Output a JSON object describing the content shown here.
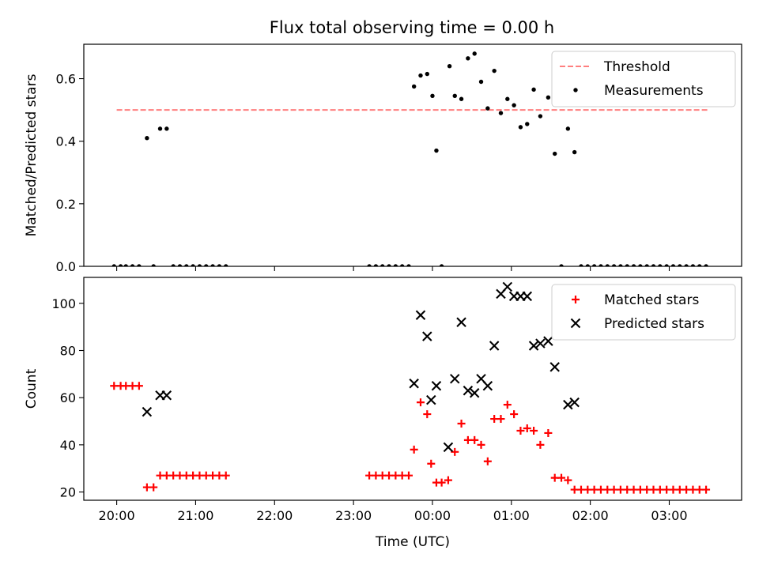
{
  "figure": {
    "title": "Flux total observing time = 0.00 h"
  },
  "chart_data": [
    {
      "type": "scatter",
      "title": "Flux total observing time = 0.00 h",
      "xlabel": "",
      "ylabel": "Matched/Predicted stars",
      "xlim": [
        "19:35",
        "03:55"
      ],
      "ylim": [
        0,
        0.71
      ],
      "xticks": [
        "20:00",
        "21:00",
        "22:00",
        "23:00",
        "00:00",
        "01:00",
        "02:00",
        "03:00"
      ],
      "yticks": [
        "0.0",
        "0.2",
        "0.4",
        "0.6"
      ],
      "show_x_tick_labels": false,
      "grid": false,
      "legend": {
        "placement": "upper right",
        "entries": [
          "Threshold",
          "Measurements"
        ]
      },
      "threshold": {
        "name": "Threshold",
        "y": 0.5,
        "x_range": [
          "20:00",
          "03:30"
        ],
        "color": "#ff7f7f",
        "style": "dashed"
      },
      "series": [
        {
          "name": "Measurements",
          "marker": "dot",
          "color": "#000000",
          "points": [
            [
              "19:58",
              0
            ],
            [
              "20:03",
              0
            ],
            [
              "20:07",
              0
            ],
            [
              "20:12",
              0
            ],
            [
              "20:17",
              0
            ],
            [
              "20:23",
              0.41
            ],
            [
              "20:28",
              0
            ],
            [
              "20:33",
              0.44
            ],
            [
              "20:38",
              0.44
            ],
            [
              "20:43",
              0
            ],
            [
              "20:48",
              0
            ],
            [
              "20:53",
              0
            ],
            [
              "20:58",
              0
            ],
            [
              "21:03",
              0
            ],
            [
              "21:08",
              0
            ],
            [
              "21:13",
              0
            ],
            [
              "21:18",
              0
            ],
            [
              "21:23",
              0
            ],
            [
              "23:12",
              0
            ],
            [
              "23:17",
              0
            ],
            [
              "23:22",
              0
            ],
            [
              "23:27",
              0
            ],
            [
              "23:32",
              0
            ],
            [
              "23:37",
              0
            ],
            [
              "23:42",
              0
            ],
            [
              "23:46",
              0.575
            ],
            [
              "23:51",
              0.61
            ],
            [
              "23:56",
              0.615
            ],
            [
              "00:00",
              0.545
            ],
            [
              "00:03",
              0.37
            ],
            [
              "00:07",
              0
            ],
            [
              "00:13",
              0.64
            ],
            [
              "00:17",
              0.545
            ],
            [
              "00:22",
              0.535
            ],
            [
              "00:27",
              0.665
            ],
            [
              "00:32",
              0.68
            ],
            [
              "00:37",
              0.59
            ],
            [
              "00:42",
              0.505
            ],
            [
              "00:47",
              0.625
            ],
            [
              "00:52",
              0.49
            ],
            [
              "00:57",
              0.535
            ],
            [
              "01:02",
              0.515
            ],
            [
              "01:07",
              0.445
            ],
            [
              "01:12",
              0.455
            ],
            [
              "01:17",
              0.565
            ],
            [
              "01:22",
              0.48
            ],
            [
              "01:28",
              0.54
            ],
            [
              "01:33",
              0.36
            ],
            [
              "01:38",
              0
            ],
            [
              "01:43",
              0.44
            ],
            [
              "01:48",
              0.365
            ],
            [
              "01:53",
              0
            ],
            [
              "01:58",
              0
            ],
            [
              "02:03",
              0
            ],
            [
              "02:08",
              0
            ],
            [
              "02:13",
              0
            ],
            [
              "02:18",
              0
            ],
            [
              "02:23",
              0
            ],
            [
              "02:28",
              0
            ],
            [
              "02:33",
              0
            ],
            [
              "02:38",
              0
            ],
            [
              "02:43",
              0
            ],
            [
              "02:48",
              0
            ],
            [
              "02:53",
              0
            ],
            [
              "02:58",
              0
            ],
            [
              "03:03",
              0
            ],
            [
              "03:08",
              0
            ],
            [
              "03:13",
              0
            ],
            [
              "03:18",
              0
            ],
            [
              "03:23",
              0
            ],
            [
              "03:28",
              0
            ]
          ]
        }
      ]
    },
    {
      "type": "scatter",
      "title": "",
      "xlabel": "Time (UTC)",
      "ylabel": "Count",
      "xlim": [
        "19:35",
        "03:55"
      ],
      "ylim": [
        16.5,
        111
      ],
      "xticks": [
        "20:00",
        "21:00",
        "22:00",
        "23:00",
        "00:00",
        "01:00",
        "02:00",
        "03:00"
      ],
      "yticks": [
        "20",
        "40",
        "60",
        "80",
        "100"
      ],
      "grid": false,
      "legend": {
        "placement": "upper right",
        "entries": [
          "Matched stars",
          "Predicted stars"
        ]
      },
      "series": [
        {
          "name": "Matched stars",
          "marker": "plus",
          "color": "#ff0000",
          "points": [
            [
              "19:58",
              65
            ],
            [
              "20:03",
              65
            ],
            [
              "20:07",
              65
            ],
            [
              "20:12",
              65
            ],
            [
              "20:17",
              65
            ],
            [
              "20:23",
              22
            ],
            [
              "20:28",
              22
            ],
            [
              "20:33",
              27
            ],
            [
              "20:38",
              27
            ],
            [
              "20:43",
              27
            ],
            [
              "20:48",
              27
            ],
            [
              "20:53",
              27
            ],
            [
              "20:58",
              27
            ],
            [
              "21:03",
              27
            ],
            [
              "21:08",
              27
            ],
            [
              "21:13",
              27
            ],
            [
              "21:18",
              27
            ],
            [
              "21:23",
              27
            ],
            [
              "23:12",
              27
            ],
            [
              "23:17",
              27
            ],
            [
              "23:22",
              27
            ],
            [
              "23:27",
              27
            ],
            [
              "23:32",
              27
            ],
            [
              "23:37",
              27
            ],
            [
              "23:42",
              27
            ],
            [
              "23:46",
              38
            ],
            [
              "23:51",
              58
            ],
            [
              "23:56",
              53
            ],
            [
              "23:59",
              32
            ],
            [
              "00:03",
              24
            ],
            [
              "00:07",
              24
            ],
            [
              "00:12",
              25
            ],
            [
              "00:17",
              37
            ],
            [
              "00:22",
              49
            ],
            [
              "00:27",
              42
            ],
            [
              "00:32",
              42
            ],
            [
              "00:37",
              40
            ],
            [
              "00:42",
              33
            ],
            [
              "00:47",
              51
            ],
            [
              "00:52",
              51
            ],
            [
              "00:57",
              57
            ],
            [
              "01:02",
              53
            ],
            [
              "01:07",
              46
            ],
            [
              "01:12",
              47
            ],
            [
              "01:17",
              46
            ],
            [
              "01:22",
              40
            ],
            [
              "01:28",
              45
            ],
            [
              "01:33",
              26
            ],
            [
              "01:38",
              26
            ],
            [
              "01:43",
              25
            ],
            [
              "01:48",
              21
            ],
            [
              "01:53",
              21
            ],
            [
              "01:58",
              21
            ],
            [
              "02:03",
              21
            ],
            [
              "02:08",
              21
            ],
            [
              "02:13",
              21
            ],
            [
              "02:18",
              21
            ],
            [
              "02:23",
              21
            ],
            [
              "02:28",
              21
            ],
            [
              "02:33",
              21
            ],
            [
              "02:38",
              21
            ],
            [
              "02:43",
              21
            ],
            [
              "02:48",
              21
            ],
            [
              "02:53",
              21
            ],
            [
              "02:58",
              21
            ],
            [
              "03:03",
              21
            ],
            [
              "03:08",
              21
            ],
            [
              "03:13",
              21
            ],
            [
              "03:18",
              21
            ],
            [
              "03:23",
              21
            ],
            [
              "03:28",
              21
            ]
          ]
        },
        {
          "name": "Predicted stars",
          "marker": "x",
          "color": "#000000",
          "points": [
            [
              "20:23",
              54
            ],
            [
              "20:33",
              61
            ],
            [
              "20:38",
              61
            ],
            [
              "23:46",
              66
            ],
            [
              "23:51",
              95
            ],
            [
              "23:56",
              86
            ],
            [
              "23:59",
              59
            ],
            [
              "00:03",
              65
            ],
            [
              "00:12",
              39
            ],
            [
              "00:17",
              68
            ],
            [
              "00:22",
              92
            ],
            [
              "00:27",
              63
            ],
            [
              "00:32",
              62
            ],
            [
              "00:37",
              68
            ],
            [
              "00:42",
              65
            ],
            [
              "00:47",
              82
            ],
            [
              "00:52",
              104
            ],
            [
              "00:57",
              107
            ],
            [
              "01:02",
              103
            ],
            [
              "01:07",
              103
            ],
            [
              "01:12",
              103
            ],
            [
              "01:17",
              82
            ],
            [
              "01:22",
              83
            ],
            [
              "01:28",
              84
            ],
            [
              "01:33",
              73
            ],
            [
              "01:43",
              57
            ],
            [
              "01:48",
              58
            ]
          ]
        }
      ]
    }
  ]
}
